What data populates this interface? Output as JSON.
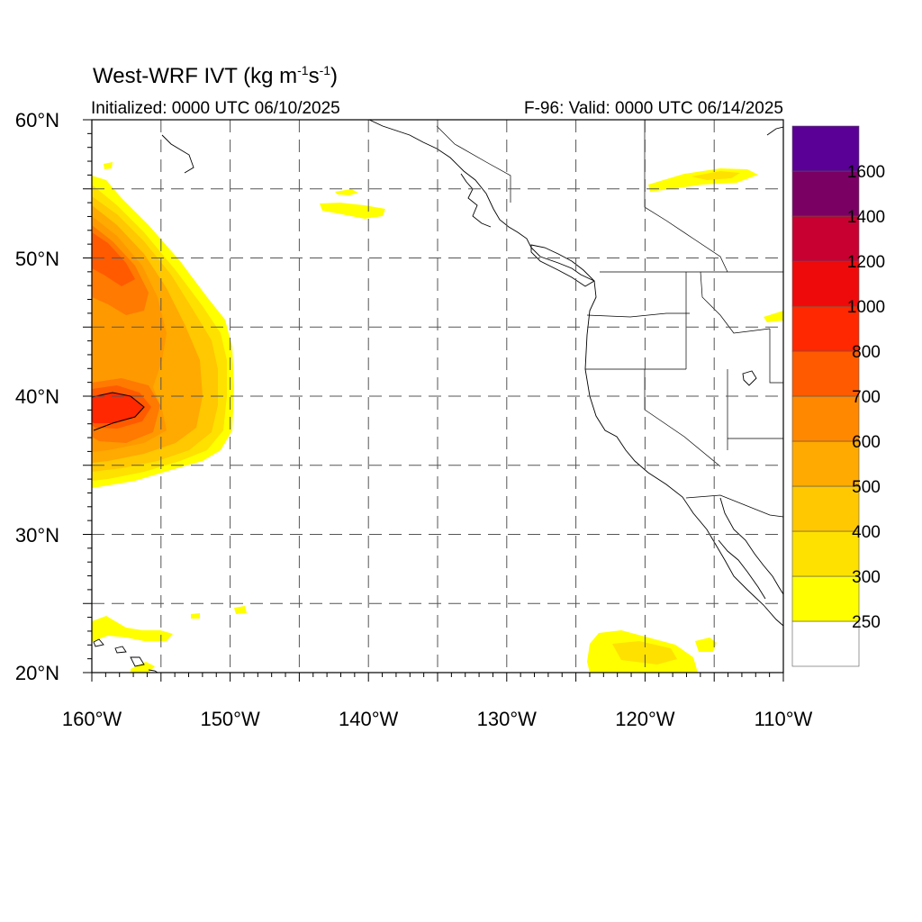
{
  "header": {
    "title_main": "West-WRF IVT (kg m",
    "title_exp1": "-1",
    "title_mid": "s",
    "title_exp2": "-1",
    "title_close": ")",
    "init_text": "Initialized: 0000 UTC 06/10/2025",
    "valid_text": "F-96: Valid: 0000 UTC 06/14/2025"
  },
  "axes": {
    "lon_labels": [
      "160°W",
      "150°W",
      "140°W",
      "130°W",
      "120°W",
      "110°W"
    ],
    "lat_labels": [
      "60°N",
      "50°N",
      "40°N",
      "30°N",
      "20°N"
    ],
    "lon_range": [
      -160,
      -110
    ],
    "lat_range": [
      20,
      60
    ]
  },
  "colorbar": {
    "labels": [
      "250",
      "300",
      "400",
      "500",
      "600",
      "700",
      "800",
      "1000",
      "1200",
      "1400",
      "1600"
    ],
    "colors": [
      "#ffffff",
      "#ffff00",
      "#ffe100",
      "#ffc800",
      "#ffaa00",
      "#ff8800",
      "#ff5a00",
      "#ff2800",
      "#ee0a0a",
      "#c80032",
      "#7a0064",
      "#5a0096"
    ]
  }
}
